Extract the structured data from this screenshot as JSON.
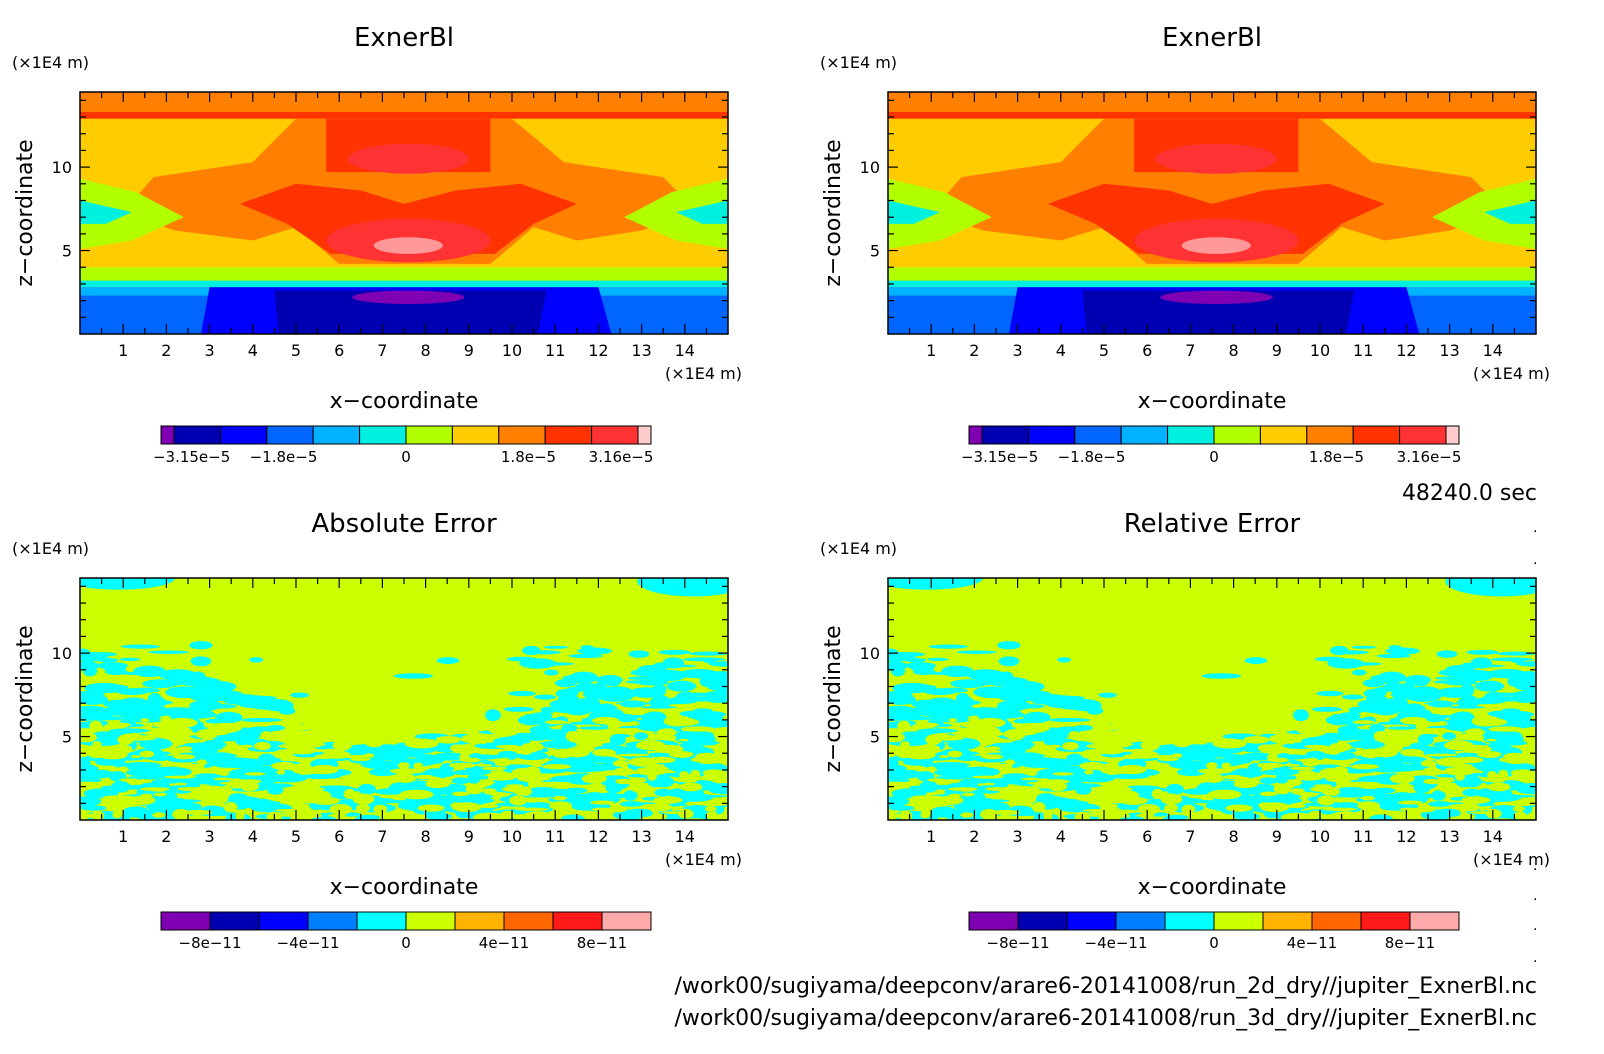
{
  "time_label": "48240.0 sec",
  "footer": {
    "file_2d": "/work00/sugiyama/deepconv/arare6-20141008/run_2d_dry//jupiter_ExnerBl.nc",
    "file_3d": "/work00/sugiyama/deepconv/arare6-20141008/run_3d_dry//jupiter_ExnerBl.nc"
  },
  "colors": {
    "field": [
      "#7f00b2",
      "#0000b2",
      "#0000ff",
      "#0066ff",
      "#00b2ff",
      "#00f0e0",
      "#b2ff00",
      "#ffcc00",
      "#ff8000",
      "#ff3300",
      "#ff3333",
      "#ff9999",
      "#ffcccc"
    ],
    "error": [
      "#7f00b2",
      "#0000b2",
      "#0000ff",
      "#0080ff",
      "#00ffff",
      "#ccff00",
      "#ffb300",
      "#ff6600",
      "#ff1a1a",
      "#ffaaaa"
    ]
  },
  "chart_data": [
    {
      "type": "heatmap",
      "title": "ExnerBl",
      "xlabel": "x−coordinate",
      "ylabel": "z−coordinate",
      "xunit": "(×1E4 m)",
      "yunit": "(×1E4 m)",
      "xlim": [
        0,
        15
      ],
      "ylim": [
        0,
        14.5
      ],
      "xticks": [
        1,
        2,
        3,
        4,
        5,
        6,
        7,
        8,
        9,
        10,
        11,
        12,
        13,
        14
      ],
      "yticks": [
        5,
        10
      ],
      "colorbar": {
        "ticks": [
          "−3.15e−5",
          "−1.8e−5",
          "0",
          "1.8e−5",
          "3.16e−5"
        ],
        "tick_positions": [
          -3.15,
          -1.8,
          0,
          1.8,
          3.16
        ],
        "range": [
          -3.6,
          3.6
        ],
        "bins": 10
      }
    },
    {
      "type": "heatmap",
      "title": "ExnerBl",
      "xlabel": "x−coordinate",
      "ylabel": "z−coordinate",
      "xunit": "(×1E4 m)",
      "yunit": "(×1E4 m)",
      "xlim": [
        0,
        15
      ],
      "ylim": [
        0,
        14.5
      ],
      "xticks": [
        1,
        2,
        3,
        4,
        5,
        6,
        7,
        8,
        9,
        10,
        11,
        12,
        13,
        14
      ],
      "yticks": [
        5,
        10
      ],
      "colorbar": {
        "ticks": [
          "−3.15e−5",
          "−1.8e−5",
          "0",
          "1.8e−5",
          "3.16e−5"
        ],
        "tick_positions": [
          -3.15,
          -1.8,
          0,
          1.8,
          3.16
        ],
        "range": [
          -3.6,
          3.6
        ],
        "bins": 10
      }
    },
    {
      "type": "heatmap",
      "title": "Absolute Error",
      "xlabel": "x−coordinate",
      "ylabel": "z−coordinate",
      "xunit": "(×1E4 m)",
      "yunit": "(×1E4 m)",
      "xlim": [
        0,
        15
      ],
      "ylim": [
        0,
        14.5
      ],
      "xticks": [
        1,
        2,
        3,
        4,
        5,
        6,
        7,
        8,
        9,
        10,
        11,
        12,
        13,
        14
      ],
      "yticks": [
        5,
        10
      ],
      "colorbar": {
        "ticks": [
          "−8e−11",
          "−4e−11",
          "0",
          "4e−11",
          "8e−11"
        ],
        "tick_positions": [
          -8,
          -4,
          0,
          4,
          8
        ],
        "range": [
          -10,
          10
        ],
        "bins": 10
      }
    },
    {
      "type": "heatmap",
      "title": "Relative Error",
      "xlabel": "x−coordinate",
      "ylabel": "z−coordinate",
      "xunit": "(×1E4 m)",
      "yunit": "(×1E4 m)",
      "xlim": [
        0,
        15
      ],
      "ylim": [
        0,
        14.5
      ],
      "xticks": [
        1,
        2,
        3,
        4,
        5,
        6,
        7,
        8,
        9,
        10,
        11,
        12,
        13,
        14
      ],
      "yticks": [
        5,
        10
      ],
      "colorbar": {
        "ticks": [
          "−8e−11",
          "−4e−11",
          "0",
          "4e−11",
          "8e−11"
        ],
        "tick_positions": [
          -8,
          -4,
          0,
          4,
          8
        ],
        "range": [
          -10,
          10
        ],
        "bins": 10
      }
    }
  ]
}
